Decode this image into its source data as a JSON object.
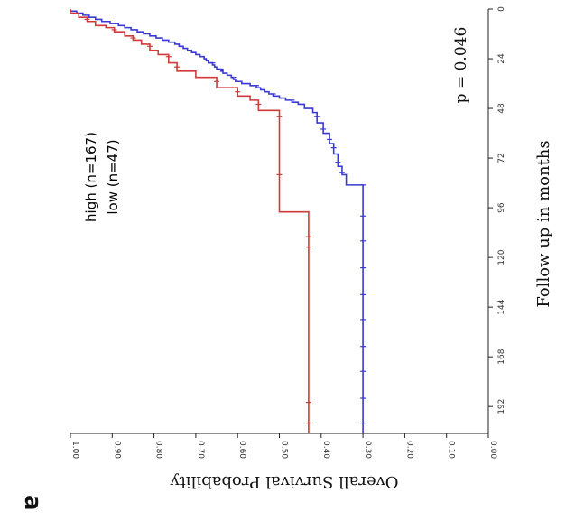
{
  "panel_label": "a",
  "chart_data": {
    "type": "line",
    "subtype": "kaplan-meier survival curve",
    "orientation": "rotated 90 degrees clockwise",
    "xlabel": "Follow up in months",
    "ylabel": "Overall Survival Probability",
    "xlim": [
      0,
      205
    ],
    "ylim": [
      0,
      1
    ],
    "xticks": [
      "0",
      "24",
      "48",
      "72",
      "96",
      "120",
      "144",
      "168",
      "192"
    ],
    "yticks": [
      "0.00",
      "0.10",
      "0.20",
      "0.30",
      "0.40",
      "0.50",
      "0.60",
      "0.70",
      "0.80",
      "0.90",
      "1.00"
    ],
    "annotation": "p = 0.046",
    "series": [
      {
        "name": "high (n=167)",
        "color": "#3a3ad0",
        "x": [
          0,
          1,
          2,
          3,
          4,
          5,
          6,
          7,
          8,
          9,
          10,
          11,
          12,
          13,
          14,
          15,
          16,
          17,
          18,
          19,
          20,
          21,
          22,
          23,
          24,
          25,
          26,
          27,
          28,
          29,
          30,
          31,
          32,
          33,
          34,
          35,
          36,
          37,
          38,
          39,
          40,
          41,
          42,
          43,
          44,
          45,
          46,
          48,
          50,
          55,
          60,
          65,
          70,
          76,
          80,
          85,
          205
        ],
        "y": [
          1.0,
          0.985,
          0.97,
          0.955,
          0.94,
          0.925,
          0.905,
          0.885,
          0.87,
          0.855,
          0.84,
          0.825,
          0.81,
          0.795,
          0.78,
          0.765,
          0.75,
          0.74,
          0.73,
          0.72,
          0.71,
          0.7,
          0.69,
          0.68,
          0.675,
          0.67,
          0.66,
          0.655,
          0.65,
          0.64,
          0.635,
          0.625,
          0.615,
          0.61,
          0.605,
          0.59,
          0.57,
          0.555,
          0.545,
          0.535,
          0.525,
          0.515,
          0.5,
          0.485,
          0.47,
          0.455,
          0.44,
          0.42,
          0.41,
          0.395,
          0.38,
          0.37,
          0.36,
          0.35,
          0.34,
          0.3,
          0.3
        ],
        "censor_x": [
          26,
          29,
          33,
          37,
          41,
          44,
          52,
          58,
          63,
          67,
          74,
          79,
          85,
          100,
          112,
          125,
          138,
          150,
          163,
          175,
          188,
          200
        ]
      },
      {
        "name": "low (n=47)",
        "color": "#d03a3a",
        "x": [
          0,
          2,
          4,
          6,
          8,
          9,
          11,
          13,
          15,
          17,
          20,
          22,
          26,
          30,
          33,
          38,
          42,
          44,
          49,
          98,
          205
        ],
        "y": [
          1.0,
          0.98,
          0.96,
          0.94,
          0.915,
          0.895,
          0.87,
          0.85,
          0.83,
          0.81,
          0.79,
          0.765,
          0.745,
          0.7,
          0.65,
          0.6,
          0.57,
          0.55,
          0.5,
          0.43,
          0.43
        ],
        "censor_x": [
          5,
          10,
          14,
          18,
          23,
          28,
          35,
          40,
          46,
          52,
          80,
          110,
          115,
          190,
          200
        ]
      }
    ]
  }
}
